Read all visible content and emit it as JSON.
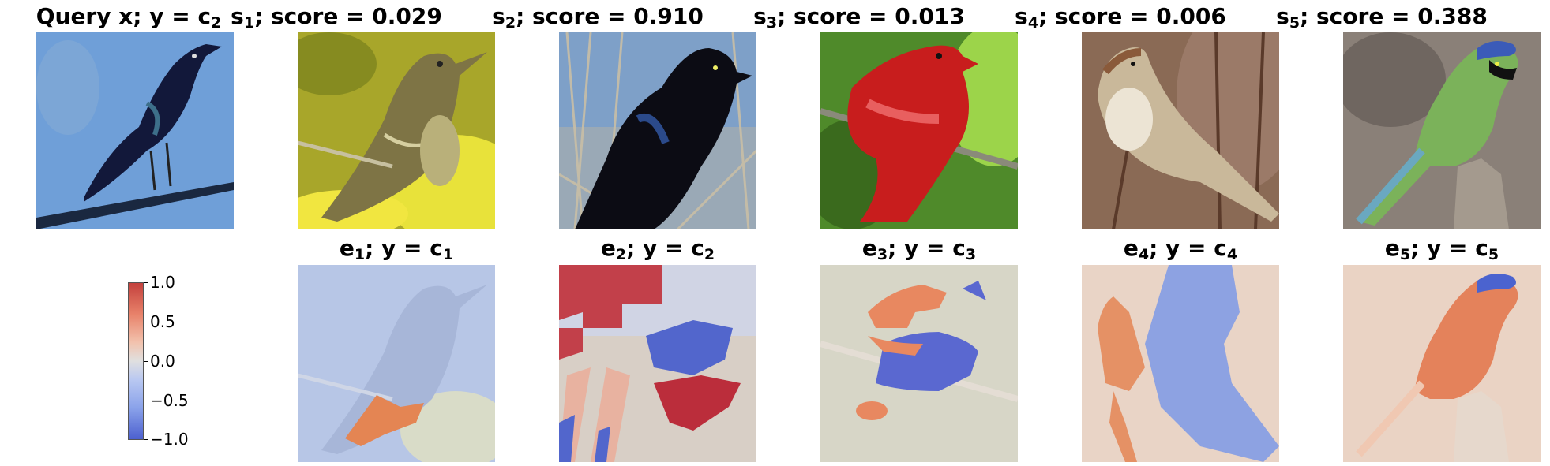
{
  "top_row": [
    {
      "id": "query",
      "prefix": "Query x; y = c",
      "sub": "2",
      "suffix": "",
      "image": "grackle-on-branch-blue-sky"
    },
    {
      "id": "s1",
      "prefix": "s",
      "sub": "1",
      "suffix": "; score = 0.029",
      "image": "olive-flycatcher-yellow-flowers"
    },
    {
      "id": "s2",
      "prefix": "s",
      "sub": "2",
      "suffix": "; score = 0.910",
      "image": "black-grackle-reeds"
    },
    {
      "id": "s3",
      "prefix": "s",
      "sub": "3",
      "suffix": "; score = 0.013",
      "image": "red-tanager-green-leaves"
    },
    {
      "id": "s4",
      "prefix": "s",
      "sub": "4",
      "suffix": "; score = 0.006",
      "image": "sparrow-on-twig"
    },
    {
      "id": "s5",
      "prefix": "s",
      "sub": "5",
      "suffix": "; score = 0.388",
      "image": "green-jay-on-stump"
    }
  ],
  "bottom_row": [
    {
      "id": "e1",
      "prefix": "e",
      "sub": "1",
      "suffix": "; y = c",
      "sub2": "1",
      "image": "explanation-heatmap-1"
    },
    {
      "id": "e2",
      "prefix": "e",
      "sub": "2",
      "suffix": "; y = c",
      "sub2": "2",
      "image": "explanation-heatmap-2"
    },
    {
      "id": "e3",
      "prefix": "e",
      "sub": "3",
      "suffix": "; y = c",
      "sub2": "3",
      "image": "explanation-heatmap-3"
    },
    {
      "id": "e4",
      "prefix": "e",
      "sub": "4",
      "suffix": "; y = c",
      "sub2": "4",
      "image": "explanation-heatmap-4"
    },
    {
      "id": "e5",
      "prefix": "e",
      "sub": "5",
      "suffix": "; y = c",
      "sub2": "5",
      "image": "explanation-heatmap-5"
    }
  ],
  "colorbar": {
    "ticks": [
      "1.0",
      "0.5",
      "0.0",
      "−0.5",
      "−1.0"
    ],
    "values": [
      1.0,
      0.5,
      0.0,
      -0.5,
      -1.0
    ],
    "range": [
      -1.0,
      1.0
    ],
    "colormap": "coolwarm",
    "colors": {
      "high": "#c4413d",
      "mid": "#e0e0e0",
      "low": "#4c60cf"
    }
  }
}
